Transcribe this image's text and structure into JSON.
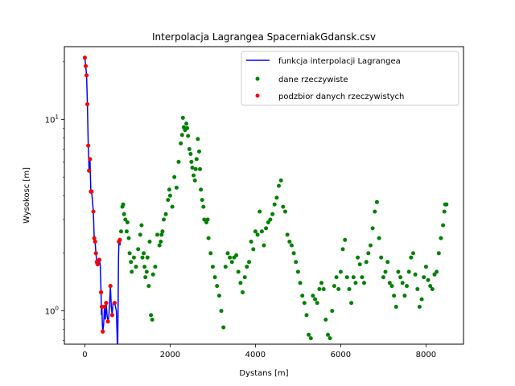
{
  "chart_data": {
    "type": "scatter",
    "title": "Interpolacja Lagrangea SpacerniakGdansk.csv",
    "xlabel": "Dystans [m]",
    "ylabel": "Wysokosc [m]",
    "xlim": [
      -480,
      8880
    ],
    "ylim": [
      0.67,
      24
    ],
    "yscale": "log",
    "grid": false,
    "legend_position": "top-right",
    "x_ticks": [
      {
        "value": 0,
        "label": "0"
      },
      {
        "value": 2000,
        "label": "2000"
      },
      {
        "value": 4000,
        "label": "4000"
      },
      {
        "value": 6000,
        "label": "6000"
      },
      {
        "value": 8000,
        "label": "8000"
      }
    ],
    "y_ticks": [
      {
        "value": 1,
        "label": "1",
        "sup": "0",
        "base": "10"
      },
      {
        "value": 10,
        "label": "1",
        "sup": "1",
        "base": "10"
      }
    ],
    "colors": {
      "interp": "#0000ff",
      "real": "#008000",
      "subset": "#ff0000"
    },
    "series": [
      {
        "name": "funkcja interpolacji Lagrangea",
        "kind": "line",
        "color": "#0000ff",
        "points": [
          [
            0,
            21
          ],
          [
            20,
            19
          ],
          [
            40,
            17
          ],
          [
            60,
            12
          ],
          [
            80,
            7.3
          ],
          [
            100,
            5.4
          ],
          [
            120,
            6.2
          ],
          [
            140,
            4.2
          ],
          [
            160,
            4.2
          ],
          [
            200,
            3.3
          ],
          [
            220,
            2.4
          ],
          [
            240,
            2.3
          ],
          [
            260,
            2.0
          ],
          [
            280,
            1.8
          ],
          [
            300,
            1.75
          ],
          [
            320,
            1.8
          ],
          [
            340,
            1.85
          ],
          [
            360,
            1.75
          ],
          [
            380,
            1.25
          ],
          [
            390,
            0.95
          ],
          [
            400,
            1.05
          ],
          [
            410,
            0.85
          ],
          [
            420,
            0.78
          ],
          [
            440,
            0.85
          ],
          [
            460,
            1.05
          ],
          [
            480,
            0.9
          ],
          [
            500,
            1.1
          ],
          [
            520,
            0.95
          ],
          [
            540,
            0.88
          ],
          [
            560,
            0.92
          ],
          [
            580,
            1.1
          ],
          [
            600,
            1.35
          ],
          [
            620,
            1.05
          ],
          [
            640,
            0.95
          ],
          [
            660,
            1.1
          ],
          [
            700,
            1.1
          ],
          [
            740,
            1.0
          ],
          [
            770,
            0.6
          ],
          [
            790,
            1.9
          ],
          [
            800,
            2.3
          ],
          [
            820,
            2.35
          ],
          [
            830,
            2.2
          ]
        ]
      },
      {
        "name": "dane rzeczywiste",
        "kind": "scatter",
        "color": "#008000",
        "points": [
          [
            0,
            21
          ],
          [
            20,
            19
          ],
          [
            40,
            17
          ],
          [
            60,
            12
          ],
          [
            80,
            7.3
          ],
          [
            100,
            5.4
          ],
          [
            120,
            6.2
          ],
          [
            140,
            4.2
          ],
          [
            160,
            4.2
          ],
          [
            200,
            3.3
          ],
          [
            220,
            2.4
          ],
          [
            240,
            2.3
          ],
          [
            260,
            2.0
          ],
          [
            280,
            1.8
          ],
          [
            300,
            1.75
          ],
          [
            340,
            1.85
          ],
          [
            380,
            1.25
          ],
          [
            400,
            1.05
          ],
          [
            420,
            0.78
          ],
          [
            460,
            1.05
          ],
          [
            500,
            1.1
          ],
          [
            540,
            0.88
          ],
          [
            600,
            1.35
          ],
          [
            640,
            0.95
          ],
          [
            700,
            1.1
          ],
          [
            800,
            2.3
          ],
          [
            820,
            2.35
          ],
          [
            850,
            2.6
          ],
          [
            880,
            3.5
          ],
          [
            900,
            3.6
          ],
          [
            920,
            3.2
          ],
          [
            950,
            3.0
          ],
          [
            980,
            2.6
          ],
          [
            1000,
            2.9
          ],
          [
            1030,
            2.4
          ],
          [
            1050,
            2.0
          ],
          [
            1080,
            1.8
          ],
          [
            1100,
            1.6
          ],
          [
            1150,
            1.9
          ],
          [
            1200,
            1.7
          ],
          [
            1250,
            2.1
          ],
          [
            1300,
            2.5
          ],
          [
            1330,
            2.8
          ],
          [
            1350,
            1.9
          ],
          [
            1380,
            2.0
          ],
          [
            1400,
            1.7
          ],
          [
            1420,
            1.5
          ],
          [
            1450,
            1.6
          ],
          [
            1470,
            1.9
          ],
          [
            1500,
            1.35
          ],
          [
            1520,
            2.3
          ],
          [
            1550,
            0.95
          ],
          [
            1580,
            0.9
          ],
          [
            1600,
            1.55
          ],
          [
            1650,
            1.7
          ],
          [
            1700,
            2.5
          ],
          [
            1750,
            2.2
          ],
          [
            1780,
            2.3
          ],
          [
            1800,
            2.5
          ],
          [
            1820,
            2.6
          ],
          [
            1850,
            3.0
          ],
          [
            1900,
            3.2
          ],
          [
            1950,
            3.8
          ],
          [
            1980,
            4.3
          ],
          [
            2000,
            4.0
          ],
          [
            2050,
            3.5
          ],
          [
            2100,
            5.0
          ],
          [
            2150,
            4.4
          ],
          [
            2200,
            6.0
          ],
          [
            2250,
            7.5
          ],
          [
            2280,
            8.3
          ],
          [
            2300,
            10.2
          ],
          [
            2320,
            9.1
          ],
          [
            2350,
            8.8
          ],
          [
            2380,
            9.5
          ],
          [
            2400,
            9.0
          ],
          [
            2420,
            8.2
          ],
          [
            2450,
            7.0
          ],
          [
            2480,
            6.6
          ],
          [
            2500,
            6.0
          ],
          [
            2520,
            5.6
          ],
          [
            2550,
            5.1
          ],
          [
            2580,
            4.8
          ],
          [
            2600,
            5.5
          ],
          [
            2620,
            6.2
          ],
          [
            2650,
            7.9
          ],
          [
            2680,
            6.8
          ],
          [
            2700,
            5.5
          ],
          [
            2720,
            4.3
          ],
          [
            2750,
            3.8
          ],
          [
            2780,
            3.5
          ],
          [
            2800,
            3.0
          ],
          [
            2850,
            2.9
          ],
          [
            2880,
            3.0
          ],
          [
            2900,
            2.4
          ],
          [
            2950,
            2.0
          ],
          [
            3000,
            1.7
          ],
          [
            3050,
            1.5
          ],
          [
            3100,
            1.35
          ],
          [
            3150,
            1.2
          ],
          [
            3200,
            1.0
          ],
          [
            3250,
            0.82
          ],
          [
            3300,
            1.7
          ],
          [
            3350,
            2.0
          ],
          [
            3400,
            1.9
          ],
          [
            3450,
            1.8
          ],
          [
            3500,
            1.9
          ],
          [
            3550,
            1.95
          ],
          [
            3600,
            1.6
          ],
          [
            3650,
            1.4
          ],
          [
            3700,
            1.25
          ],
          [
            3750,
            1.5
          ],
          [
            3800,
            1.7
          ],
          [
            3850,
            1.8
          ],
          [
            3900,
            2.3
          ],
          [
            3950,
            2.1
          ],
          [
            4000,
            2.6
          ],
          [
            4050,
            2.5
          ],
          [
            4100,
            3.3
          ],
          [
            4150,
            2.6
          ],
          [
            4200,
            2.2
          ],
          [
            4250,
            2.7
          ],
          [
            4300,
            2.9
          ],
          [
            4350,
            3.0
          ],
          [
            4400,
            3.2
          ],
          [
            4450,
            3.6
          ],
          [
            4500,
            3.9
          ],
          [
            4550,
            4.5
          ],
          [
            4600,
            4.8
          ],
          [
            4650,
            3.5
          ],
          [
            4700,
            3.3
          ],
          [
            4750,
            2.5
          ],
          [
            4800,
            2.3
          ],
          [
            4850,
            2.2
          ],
          [
            4900,
            2.0
          ],
          [
            4950,
            1.8
          ],
          [
            5000,
            1.6
          ],
          [
            5050,
            1.4
          ],
          [
            5100,
            1.2
          ],
          [
            5150,
            1.1
          ],
          [
            5200,
            0.95
          ],
          [
            5250,
            0.75
          ],
          [
            5300,
            0.72
          ],
          [
            5350,
            1.2
          ],
          [
            5400,
            1.15
          ],
          [
            5450,
            1.1
          ],
          [
            5500,
            1.3
          ],
          [
            5550,
            1.4
          ],
          [
            5600,
            1.3
          ],
          [
            5650,
            0.9
          ],
          [
            5700,
            0.75
          ],
          [
            5750,
            0.72
          ],
          [
            5800,
            1.0
          ],
          [
            5850,
            1.35
          ],
          [
            5900,
            1.5
          ],
          [
            5950,
            1.3
          ],
          [
            6000,
            1.6
          ],
          [
            6050,
            2.1
          ],
          [
            6100,
            2.35
          ],
          [
            6150,
            1.5
          ],
          [
            6200,
            1.3
          ],
          [
            6250,
            1.1
          ],
          [
            6300,
            1.5
          ],
          [
            6350,
            1.4
          ],
          [
            6400,
            1.9
          ],
          [
            6450,
            1.75
          ],
          [
            6500,
            1.5
          ],
          [
            6550,
            1.4
          ],
          [
            6600,
            1.8
          ],
          [
            6650,
            2.0
          ],
          [
            6700,
            2.2
          ],
          [
            6750,
            2.7
          ],
          [
            6800,
            3.3
          ],
          [
            6850,
            3.7
          ],
          [
            6900,
            2.4
          ],
          [
            6950,
            1.9
          ],
          [
            7000,
            1.5
          ],
          [
            7050,
            1.6
          ],
          [
            7100,
            1.8
          ],
          [
            7150,
            1.4
          ],
          [
            7200,
            1.35
          ],
          [
            7250,
            1.2
          ],
          [
            7300,
            1.05
          ],
          [
            7350,
            1.6
          ],
          [
            7400,
            1.5
          ],
          [
            7450,
            1.4
          ],
          [
            7500,
            1.2
          ],
          [
            7550,
            1.35
          ],
          [
            7600,
            1.6
          ],
          [
            7650,
            1.9
          ],
          [
            7700,
            2.0
          ],
          [
            7750,
            1.55
          ],
          [
            7800,
            1.3
          ],
          [
            7850,
            1.05
          ],
          [
            7900,
            1.15
          ],
          [
            7950,
            1.5
          ],
          [
            8000,
            1.7
          ],
          [
            8050,
            1.45
          ],
          [
            8100,
            1.35
          ],
          [
            8150,
            1.3
          ],
          [
            8200,
            1.55
          ],
          [
            8250,
            1.6
          ],
          [
            8300,
            2.0
          ],
          [
            8350,
            2.4
          ],
          [
            8400,
            2.8
          ],
          [
            8430,
            3.3
          ],
          [
            8450,
            3.6
          ],
          [
            8480,
            3.6
          ]
        ]
      },
      {
        "name": "podzbior danych rzeczywistych",
        "kind": "scatter",
        "color": "#ff0000",
        "points": [
          [
            0,
            21
          ],
          [
            20,
            19
          ],
          [
            40,
            17
          ],
          [
            60,
            12
          ],
          [
            80,
            7.3
          ],
          [
            100,
            5.4
          ],
          [
            120,
            6.2
          ],
          [
            140,
            4.2
          ],
          [
            160,
            4.2
          ],
          [
            200,
            3.3
          ],
          [
            220,
            2.4
          ],
          [
            240,
            2.3
          ],
          [
            260,
            2.0
          ],
          [
            280,
            1.8
          ],
          [
            300,
            1.75
          ],
          [
            340,
            1.85
          ],
          [
            380,
            1.25
          ],
          [
            400,
            1.05
          ],
          [
            420,
            0.78
          ],
          [
            460,
            1.05
          ],
          [
            500,
            1.1
          ],
          [
            540,
            0.88
          ],
          [
            600,
            1.35
          ],
          [
            640,
            0.95
          ],
          [
            700,
            1.1
          ],
          [
            800,
            2.3
          ],
          [
            820,
            2.35
          ]
        ]
      }
    ]
  }
}
